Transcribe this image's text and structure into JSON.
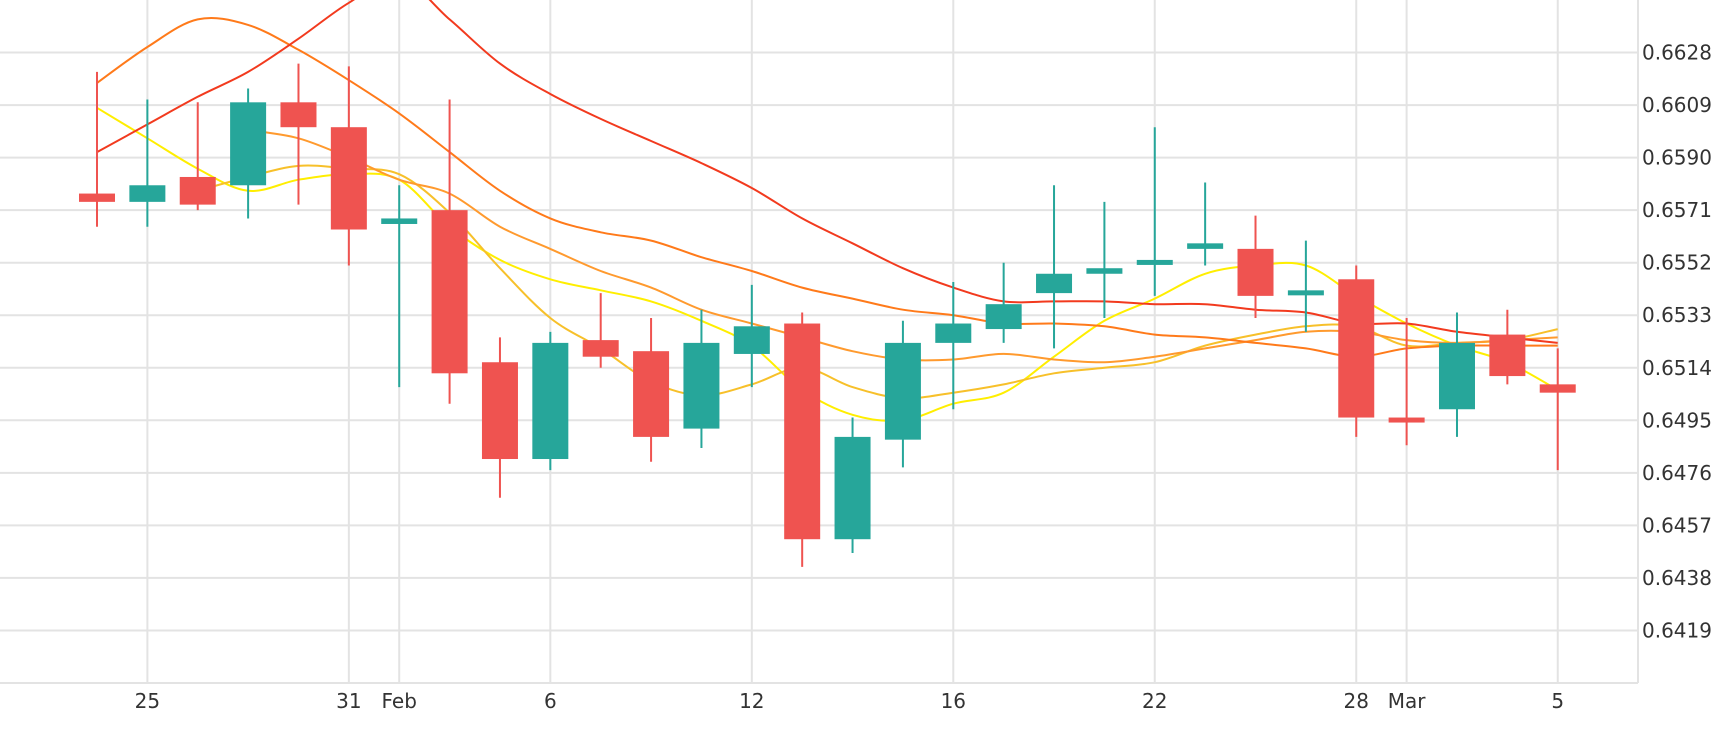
{
  "chart_data": {
    "type": "candlestick",
    "title": "",
    "xlabel": "",
    "ylabel": "",
    "x_tick_labels": [
      {
        "label": "25",
        "index": 1
      },
      {
        "label": "31",
        "index": 5
      },
      {
        "label": "Feb",
        "index": 6
      },
      {
        "label": "6",
        "index": 9
      },
      {
        "label": "12",
        "index": 13
      },
      {
        "label": "16",
        "index": 17
      },
      {
        "label": "22",
        "index": 21
      },
      {
        "label": "28",
        "index": 25
      },
      {
        "label": "Mar",
        "index": 26
      },
      {
        "label": "5",
        "index": 29
      }
    ],
    "y_ticks": [
      0.6628,
      0.6609,
      0.659,
      0.6571,
      0.6552,
      0.6533,
      0.6514,
      0.6495,
      0.6476,
      0.6457,
      0.6438,
      0.6419
    ],
    "y_tick_labels": [
      "0.6628",
      "0.6609",
      "0.6590",
      "0.6571",
      "0.6552",
      "0.6533",
      "0.6514",
      "0.6495",
      "0.6476",
      "0.6457",
      "0.6438",
      "0.6419"
    ],
    "ylim": [
      0.64,
      0.6647
    ],
    "y_axis_position": "right",
    "grid": true,
    "colors": {
      "up": "#26a69a",
      "down": "#ef5350"
    },
    "candles": [
      {
        "open": 0.6577,
        "high": 0.6621,
        "low": 0.6565,
        "close": 0.6574
      },
      {
        "open": 0.6574,
        "high": 0.6611,
        "low": 0.6565,
        "close": 0.658
      },
      {
        "open": 0.6583,
        "high": 0.661,
        "low": 0.6571,
        "close": 0.6573
      },
      {
        "open": 0.658,
        "high": 0.6615,
        "low": 0.6568,
        "close": 0.661
      },
      {
        "open": 0.661,
        "high": 0.6624,
        "low": 0.6573,
        "close": 0.6601
      },
      {
        "open": 0.6601,
        "high": 0.6623,
        "low": 0.6551,
        "close": 0.6564
      },
      {
        "open": 0.6566,
        "high": 0.658,
        "low": 0.6507,
        "close": 0.6568
      },
      {
        "open": 0.6571,
        "high": 0.6611,
        "low": 0.6501,
        "close": 0.6512
      },
      {
        "open": 0.6516,
        "high": 0.6525,
        "low": 0.6467,
        "close": 0.6481
      },
      {
        "open": 0.6481,
        "high": 0.6527,
        "low": 0.6477,
        "close": 0.6523
      },
      {
        "open": 0.6524,
        "high": 0.6541,
        "low": 0.6514,
        "close": 0.6518
      },
      {
        "open": 0.652,
        "high": 0.6532,
        "low": 0.648,
        "close": 0.6489
      },
      {
        "open": 0.6492,
        "high": 0.6535,
        "low": 0.6485,
        "close": 0.6523
      },
      {
        "open": 0.6519,
        "high": 0.6544,
        "low": 0.6507,
        "close": 0.6529
      },
      {
        "open": 0.653,
        "high": 0.6534,
        "low": 0.6442,
        "close": 0.6452
      },
      {
        "open": 0.6452,
        "high": 0.6496,
        "low": 0.6447,
        "close": 0.6489
      },
      {
        "open": 0.6488,
        "high": 0.6531,
        "low": 0.6478,
        "close": 0.6523
      },
      {
        "open": 0.6523,
        "high": 0.6545,
        "low": 0.6499,
        "close": 0.653
      },
      {
        "open": 0.6528,
        "high": 0.6552,
        "low": 0.6523,
        "close": 0.6537
      },
      {
        "open": 0.6541,
        "high": 0.658,
        "low": 0.6521,
        "close": 0.6548
      },
      {
        "open": 0.6548,
        "high": 0.6574,
        "low": 0.6532,
        "close": 0.655
      },
      {
        "open": 0.6552,
        "high": 0.6601,
        "low": 0.654,
        "close": 0.6553
      },
      {
        "open": 0.6557,
        "high": 0.6581,
        "low": 0.6551,
        "close": 0.6559
      },
      {
        "open": 0.6557,
        "high": 0.6569,
        "low": 0.6532,
        "close": 0.654
      },
      {
        "open": 0.6542,
        "high": 0.656,
        "low": 0.6527,
        "close": 0.6542
      },
      {
        "open": 0.6546,
        "high": 0.6551,
        "low": 0.6489,
        "close": 0.6496
      },
      {
        "open": 0.6496,
        "high": 0.6532,
        "low": 0.6486,
        "close": 0.6495
      },
      {
        "open": 0.6499,
        "high": 0.6534,
        "low": 0.6489,
        "close": 0.6523
      },
      {
        "open": 0.6526,
        "high": 0.6535,
        "low": 0.6508,
        "close": 0.6511
      },
      {
        "open": 0.6508,
        "high": 0.6521,
        "low": 0.6477,
        "close": 0.6505
      }
    ],
    "lines": [
      {
        "color": "#ffee00",
        "values": [
          0.6608,
          0.6597,
          0.6586,
          0.6578,
          0.6582,
          0.6584,
          0.6582,
          0.6565,
          0.6553,
          0.6546,
          0.6542,
          0.6538,
          0.6531,
          0.6522,
          0.6506,
          0.6497,
          0.6495,
          0.6501,
          0.6505,
          0.6518,
          0.6531,
          0.6539,
          0.6548,
          0.6551,
          0.6551,
          0.654,
          0.653,
          0.6522,
          0.6516,
          0.6506
        ]
      },
      {
        "color": "#f7c02a",
        "values": [
          null,
          null,
          0.6578,
          0.6583,
          0.6587,
          0.6586,
          0.6584,
          0.657,
          0.655,
          0.6532,
          0.6521,
          0.6509,
          0.6504,
          0.6508,
          0.6514,
          0.6507,
          0.6503,
          0.6505,
          0.6508,
          0.6512,
          0.6514,
          0.6516,
          0.6522,
          0.6526,
          0.6529,
          0.6529,
          0.6522,
          0.6523,
          0.6524,
          0.6528
        ]
      },
      {
        "color": "#ff9a2e",
        "values": [
          null,
          null,
          null,
          0.66,
          0.6597,
          0.659,
          0.6582,
          0.6577,
          0.6565,
          0.6557,
          0.6549,
          0.6543,
          0.6535,
          0.653,
          0.6525,
          0.652,
          0.6517,
          0.6517,
          0.6519,
          0.6517,
          0.6516,
          0.6518,
          0.6521,
          0.6524,
          0.6527,
          0.6527,
          0.6524,
          0.6523,
          0.6524,
          0.6525
        ]
      },
      {
        "color": "#ff7a1a",
        "values": [
          0.6617,
          0.663,
          0.664,
          0.6638,
          0.6629,
          0.6618,
          0.6606,
          0.6592,
          0.6578,
          0.6568,
          0.6563,
          0.656,
          0.6554,
          0.6549,
          0.6543,
          0.6539,
          0.6535,
          0.6533,
          0.653,
          0.653,
          0.6529,
          0.6526,
          0.6525,
          0.6523,
          0.6521,
          0.6518,
          0.6521,
          0.6522,
          0.6522,
          0.6522
        ]
      },
      {
        "color": "#f23a1e",
        "values": [
          0.6592,
          0.6602,
          0.6612,
          0.6621,
          0.6633,
          0.6646,
          0.6655,
          0.664,
          0.6624,
          0.6613,
          0.6604,
          0.6596,
          0.6588,
          0.6579,
          0.6568,
          0.6559,
          0.655,
          0.6543,
          0.6538,
          0.6538,
          0.6538,
          0.6537,
          0.6537,
          0.6535,
          0.6534,
          0.653,
          0.653,
          0.6527,
          0.6525,
          0.6523
        ]
      }
    ]
  }
}
